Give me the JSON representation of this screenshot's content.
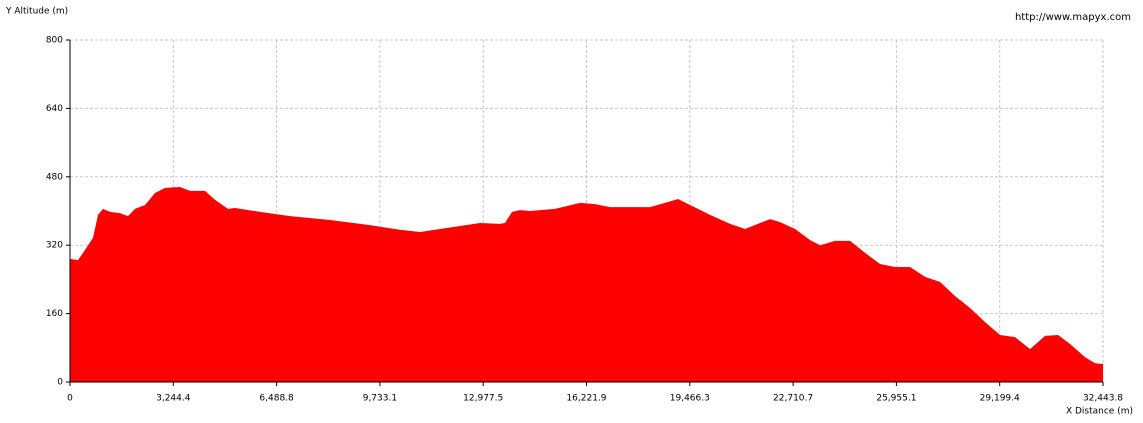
{
  "chart_data": {
    "type": "area",
    "y_label": "Y Altitude (m)",
    "x_label": "X Distance (m)",
    "source": "http://www.mapyx.com",
    "x": [
      0,
      251,
      471,
      722,
      879,
      1037,
      1256,
      1571,
      1822,
      2042,
      2356,
      2670,
      2984,
      3455,
      3769,
      4240,
      4555,
      4963,
      5183,
      5968,
      6910,
      8166,
      9423,
      10365,
      10994,
      11622,
      12250,
      12878,
      13506,
      13663,
      13883,
      14134,
      14449,
      15234,
      16019,
      16490,
      16961,
      18218,
      18689,
      19097,
      19474,
      20102,
      20731,
      21202,
      21673,
      21987,
      22301,
      22773,
      23244,
      23558,
      24029,
      24500,
      24971,
      25442,
      25914,
      26385,
      26856,
      27327,
      27798,
      28269,
      28740,
      29211,
      29682,
      30153,
      30624,
      31033,
      31410,
      31881,
      32195,
      32443.8
    ],
    "series": [
      {
        "color": "#ff0000",
        "values": [
          288,
          285,
          309,
          337,
          391,
          405,
          398,
          395,
          388,
          405,
          414,
          442,
          454,
          456,
          447,
          447,
          426,
          405,
          407,
          398,
          388,
          379,
          367,
          356,
          351,
          358,
          365,
          372,
          370,
          372,
          398,
          402,
          400,
          405,
          419,
          416,
          409,
          409,
          419,
          428,
          414,
          391,
          370,
          358,
          372,
          381,
          374,
          358,
          332,
          320,
          330,
          330,
          302,
          276,
          269,
          269,
          246,
          234,
          201,
          173,
          140,
          110,
          105,
          77,
          108,
          110,
          89,
          58,
          44,
          42
        ]
      }
    ],
    "xlim": [
      0,
      32443.8
    ],
    "ylim": [
      0,
      800
    ],
    "xticks": [
      0,
      {
        "value": 3244.4,
        "label": "3,244.4"
      },
      {
        "value": 6488.8,
        "label": "6,488.8"
      },
      {
        "value": 9733.1,
        "label": "9,733.1"
      },
      {
        "value": 12977.5,
        "label": "12,977.5"
      },
      {
        "value": 16221.9,
        "label": "16,221.9"
      },
      {
        "value": 19466.3,
        "label": "19,466.3"
      },
      {
        "value": 22710.7,
        "label": "22,710.7"
      },
      {
        "value": 25955.1,
        "label": "25,955.1"
      },
      {
        "value": 29199.4,
        "label": "29,199.4"
      },
      {
        "value": 32443.8,
        "label": "32,443.8"
      }
    ],
    "yticks": [
      0,
      160,
      320,
      480,
      640,
      800
    ],
    "grid": true
  }
}
